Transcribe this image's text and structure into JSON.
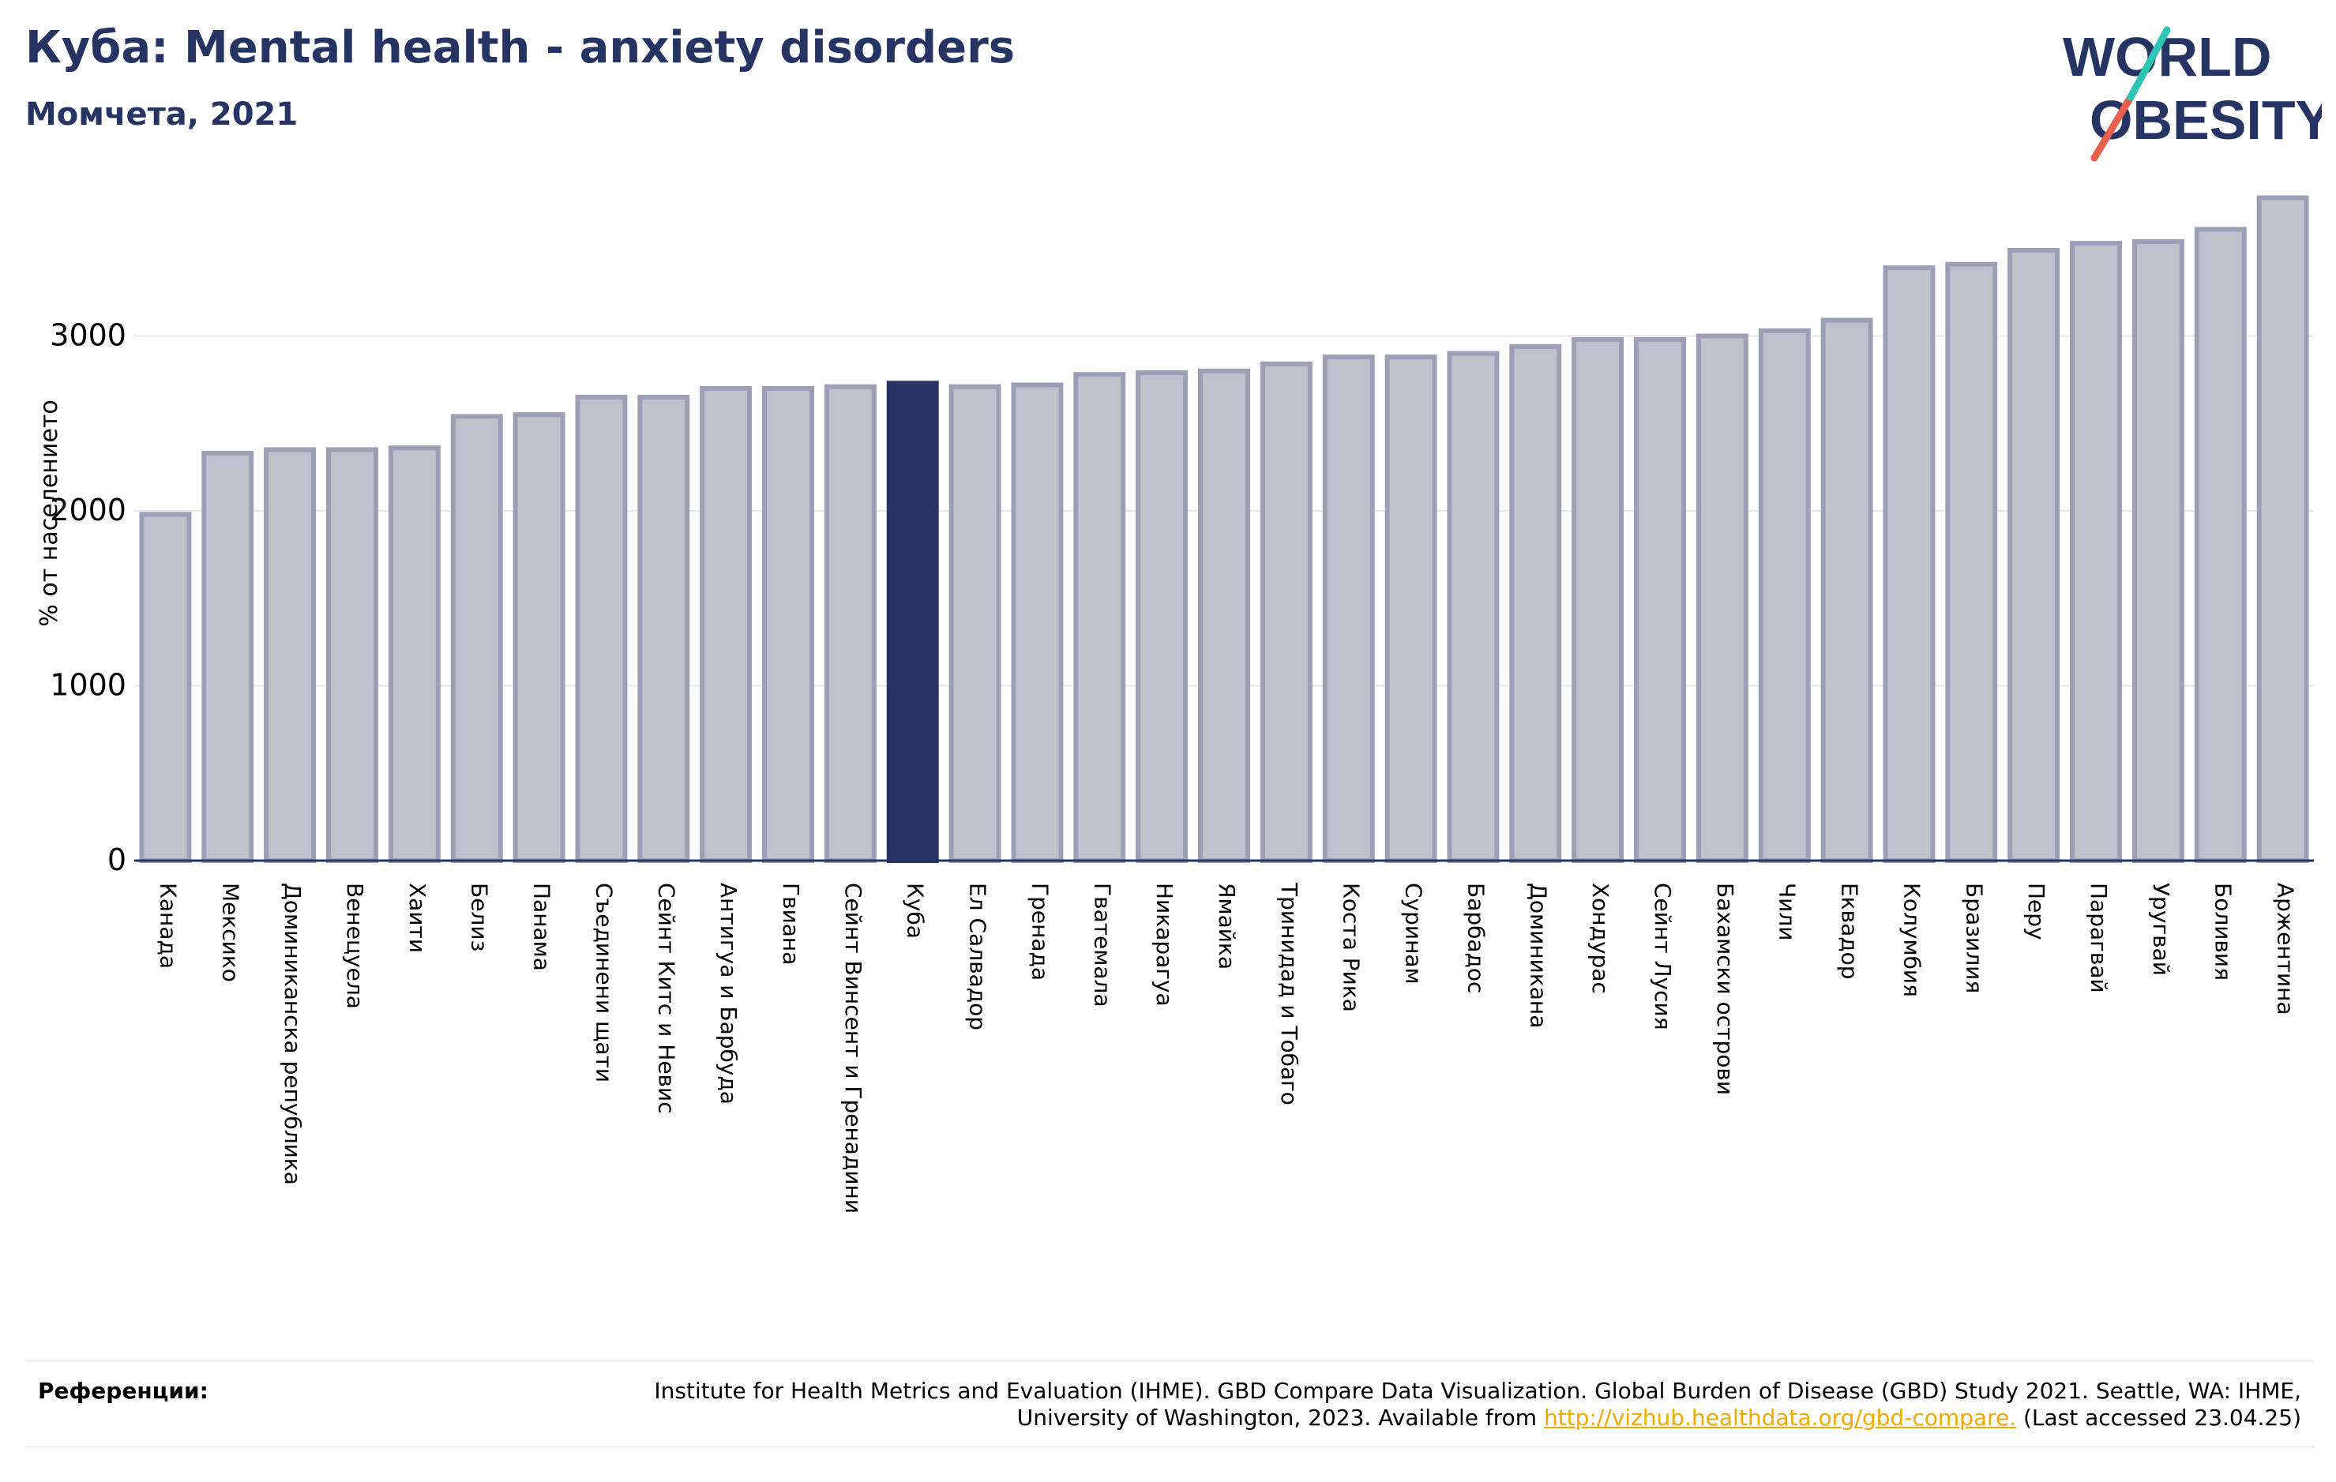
{
  "header": {
    "title": "Куба: Mental health - anxiety disorders",
    "subtitle": "Момчета, 2021"
  },
  "logo": {
    "line1": "WORLD",
    "line2": "OBESITY"
  },
  "colors": {
    "highlight": "#263463",
    "bar_fill": "#bfc1cd",
    "bar_stroke": "#9c9fb5",
    "axis": "#263463",
    "grid": "#e6e7ee",
    "link": "#f2a900"
  },
  "chart_data": {
    "type": "bar",
    "title": "Куба: Mental health - anxiety disorders",
    "subtitle": "Момчета, 2021",
    "ylabel": "% от населението",
    "ylim": [
      0,
      3900
    ],
    "yticks": [
      0,
      1000,
      2000,
      3000
    ],
    "grid": true,
    "highlight": "Куба",
    "categories": [
      "Канада",
      "Мексико",
      "Доминиканска република",
      "Венецуела",
      "Хаити",
      "Белиз",
      "Панама",
      "Съединени щати",
      "Сейнт Китс и Невис",
      "Антигуа и Барбуда",
      "Гвиана",
      "Сейнт Винсент и Гренадини",
      "Куба",
      "Ел Салвадор",
      "Гренада",
      "Гватемала",
      "Никарагуа",
      "Ямайка",
      "Тринидад и Тобаго",
      "Коста Рика",
      "Суринам",
      "Барбадос",
      "Доминикана",
      "Хондурас",
      "Сейнт Лусия",
      "Бахамски острови",
      "Чили",
      "Еквадор",
      "Колумбия",
      "Бразилия",
      "Перу",
      "Парагвай",
      "Уругвай",
      "Боливия",
      "Аржентина"
    ],
    "values": [
      1980,
      2330,
      2350,
      2350,
      2360,
      2540,
      2550,
      2650,
      2650,
      2700,
      2700,
      2710,
      2730,
      2710,
      2720,
      2780,
      2790,
      2800,
      2840,
      2880,
      2880,
      2900,
      2940,
      2980,
      2980,
      3000,
      3030,
      3090,
      3390,
      3410,
      3490,
      3530,
      3540,
      3610,
      3790
    ]
  },
  "references": {
    "label": "Референции:",
    "text_before": "Institute for Health Metrics and Evaluation (IHME). GBD Compare Data Visualization. Global Burden of Disease (GBD) Study 2021. Seattle, WA: IHME, University of Washington, 2023. Available from ",
    "link": "http://vizhub.healthdata.org/gbd-compare.",
    "text_after": " (Last accessed 23.04.25)"
  }
}
